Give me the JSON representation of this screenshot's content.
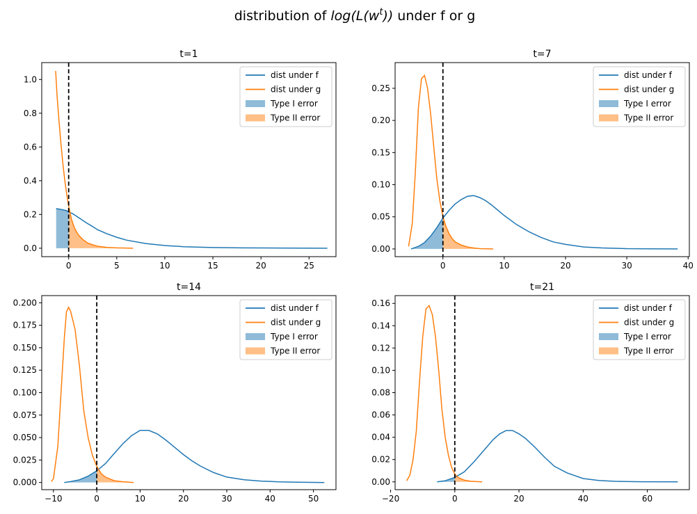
{
  "figure": {
    "title_prefix": "distribution of ",
    "title_math": "log(L(w",
    "title_sup": "t",
    "title_math_close": "))",
    "title_suffix": " under f or g"
  },
  "colors": {
    "f": "#1f77b4",
    "g": "#ff7f0e",
    "type1_fill": "#1f77b4",
    "type2_fill": "#ff7f0e",
    "threshold": "#000000"
  },
  "legend": {
    "f_label": "dist under f",
    "g_label": "dist under g",
    "type1_label": "Type I error",
    "type2_label": "Type II error",
    "placement": "top-right"
  },
  "chart_data": [
    {
      "type": "line",
      "title": "t=1",
      "xlim": [
        -2.8,
        27.8
      ],
      "ylim": [
        -0.05,
        1.1
      ],
      "xticks": [
        0,
        5,
        10,
        15,
        20,
        25
      ],
      "yticks": [
        0.0,
        0.2,
        0.4,
        0.6,
        0.8,
        1.0
      ],
      "ytick_decimals": 1,
      "threshold_x": 0,
      "series": [
        {
          "name": "dist under f",
          "x": [
            -1.3,
            -1.0,
            -0.6,
            -0.2,
            0.0,
            0.4,
            0.8,
            1.2,
            1.6,
            2.0,
            2.5,
            3.0,
            4.0,
            5.0,
            6.0,
            8.0,
            10.0,
            12.0,
            15.0,
            18.0,
            22.0,
            26.9
          ],
          "y": [
            0.235,
            0.232,
            0.228,
            0.222,
            0.214,
            0.205,
            0.19,
            0.175,
            0.16,
            0.145,
            0.128,
            0.11,
            0.085,
            0.065,
            0.048,
            0.028,
            0.016,
            0.009,
            0.004,
            0.002,
            0.001,
            0.0
          ]
        },
        {
          "name": "dist under g",
          "x": [
            -1.35,
            -1.2,
            -1.0,
            -0.8,
            -0.6,
            -0.4,
            -0.2,
            0.0,
            0.3,
            0.6,
            1.0,
            1.5,
            2.0,
            2.5,
            3.0,
            4.0,
            5.0,
            6.7
          ],
          "y": [
            1.05,
            0.9,
            0.75,
            0.62,
            0.5,
            0.4,
            0.32,
            0.25,
            0.17,
            0.12,
            0.08,
            0.05,
            0.03,
            0.02,
            0.012,
            0.005,
            0.002,
            0.0
          ]
        }
      ]
    },
    {
      "type": "line",
      "title": "t=7",
      "xlim": [
        -7.8,
        40.2
      ],
      "ylim": [
        -0.012,
        0.29
      ],
      "xticks": [
        0,
        10,
        20,
        30,
        40
      ],
      "yticks": [
        0.0,
        0.05,
        0.1,
        0.15,
        0.2,
        0.25
      ],
      "ytick_decimals": 2,
      "threshold_x": 0,
      "series": [
        {
          "name": "dist under f",
          "x": [
            -5.2,
            -4,
            -3,
            -2,
            -1,
            0,
            1,
            2,
            3,
            4,
            5,
            6,
            7,
            8,
            9,
            10,
            12,
            14,
            16,
            18,
            20,
            23,
            26,
            30,
            34,
            38.3
          ],
          "y": [
            0.0,
            0.004,
            0.01,
            0.02,
            0.033,
            0.048,
            0.06,
            0.07,
            0.077,
            0.082,
            0.083,
            0.08,
            0.075,
            0.068,
            0.06,
            0.052,
            0.038,
            0.027,
            0.018,
            0.011,
            0.007,
            0.003,
            0.0015,
            0.0005,
            0.0002,
            0.0
          ]
        },
        {
          "name": "dist under g",
          "x": [
            -5.6,
            -5,
            -4.5,
            -4,
            -3.5,
            -3,
            -2.5,
            -2,
            -1.5,
            -1,
            -0.5,
            0,
            0.5,
            1,
            1.5,
            2,
            3,
            4,
            5,
            6,
            8.2
          ],
          "y": [
            0.004,
            0.04,
            0.12,
            0.22,
            0.265,
            0.27,
            0.25,
            0.21,
            0.16,
            0.11,
            0.075,
            0.05,
            0.035,
            0.024,
            0.016,
            0.011,
            0.006,
            0.003,
            0.0015,
            0.0005,
            0.0
          ]
        }
      ]
    },
    {
      "type": "line",
      "title": "t=14",
      "xlim": [
        -12.7,
        55.2
      ],
      "ylim": [
        -0.008,
        0.208
      ],
      "xticks": [
        -10,
        0,
        10,
        20,
        30,
        40,
        50
      ],
      "yticks": [
        0.0,
        0.025,
        0.05,
        0.075,
        0.1,
        0.125,
        0.15,
        0.175,
        0.2
      ],
      "ytick_decimals": 3,
      "threshold_x": 0,
      "series": [
        {
          "name": "dist under f",
          "x": [
            -7.5,
            -6,
            -4,
            -2,
            0,
            2,
            4,
            6,
            8,
            10,
            12,
            14,
            16,
            18,
            20,
            22,
            24,
            27,
            30,
            34,
            38,
            42,
            46,
            52.5
          ],
          "y": [
            0.0,
            0.001,
            0.003,
            0.007,
            0.013,
            0.021,
            0.032,
            0.043,
            0.052,
            0.058,
            0.058,
            0.054,
            0.047,
            0.039,
            0.031,
            0.024,
            0.018,
            0.011,
            0.006,
            0.003,
            0.0015,
            0.0007,
            0.0003,
            0.0
          ]
        },
        {
          "name": "dist under g",
          "x": [
            -10.5,
            -10,
            -9,
            -8,
            -7.5,
            -7,
            -6.5,
            -6,
            -5.5,
            -5,
            -4,
            -3,
            -2,
            -1,
            0,
            1,
            2,
            4,
            6,
            8.5
          ],
          "y": [
            0.001,
            0.004,
            0.04,
            0.12,
            0.16,
            0.19,
            0.195,
            0.19,
            0.18,
            0.17,
            0.13,
            0.08,
            0.05,
            0.03,
            0.018,
            0.01,
            0.006,
            0.002,
            0.0008,
            0.0
          ]
        }
      ]
    },
    {
      "type": "line",
      "title": "t=21",
      "xlim": [
        -18.6,
        73.1
      ],
      "ylim": [
        -0.007,
        0.167
      ],
      "xticks": [
        -20,
        0,
        20,
        40,
        60
      ],
      "yticks": [
        0.0,
        0.02,
        0.04,
        0.06,
        0.08,
        0.1,
        0.12,
        0.14,
        0.16
      ],
      "ytick_decimals": 2,
      "threshold_x": 0,
      "series": [
        {
          "name": "dist under f",
          "x": [
            -5.5,
            -3,
            0,
            3,
            6,
            9,
            12,
            14,
            16,
            18,
            20,
            22,
            25,
            28,
            31,
            35,
            40,
            45,
            50,
            58,
            69.5
          ],
          "y": [
            0.0,
            0.001,
            0.004,
            0.009,
            0.018,
            0.028,
            0.038,
            0.043,
            0.046,
            0.046,
            0.043,
            0.039,
            0.031,
            0.022,
            0.014,
            0.008,
            0.003,
            0.0012,
            0.0005,
            0.0001,
            0.0
          ]
        },
        {
          "name": "dist under g",
          "x": [
            -15,
            -14,
            -13,
            -12,
            -11,
            -10,
            -9,
            -8,
            -7,
            -6,
            -5,
            -4,
            -3,
            -2,
            -1,
            0,
            1,
            3,
            5,
            8.5
          ],
          "y": [
            0.001,
            0.006,
            0.02,
            0.045,
            0.09,
            0.13,
            0.155,
            0.158,
            0.15,
            0.13,
            0.1,
            0.065,
            0.04,
            0.024,
            0.013,
            0.007,
            0.004,
            0.0015,
            0.0005,
            0.0
          ]
        }
      ]
    }
  ]
}
